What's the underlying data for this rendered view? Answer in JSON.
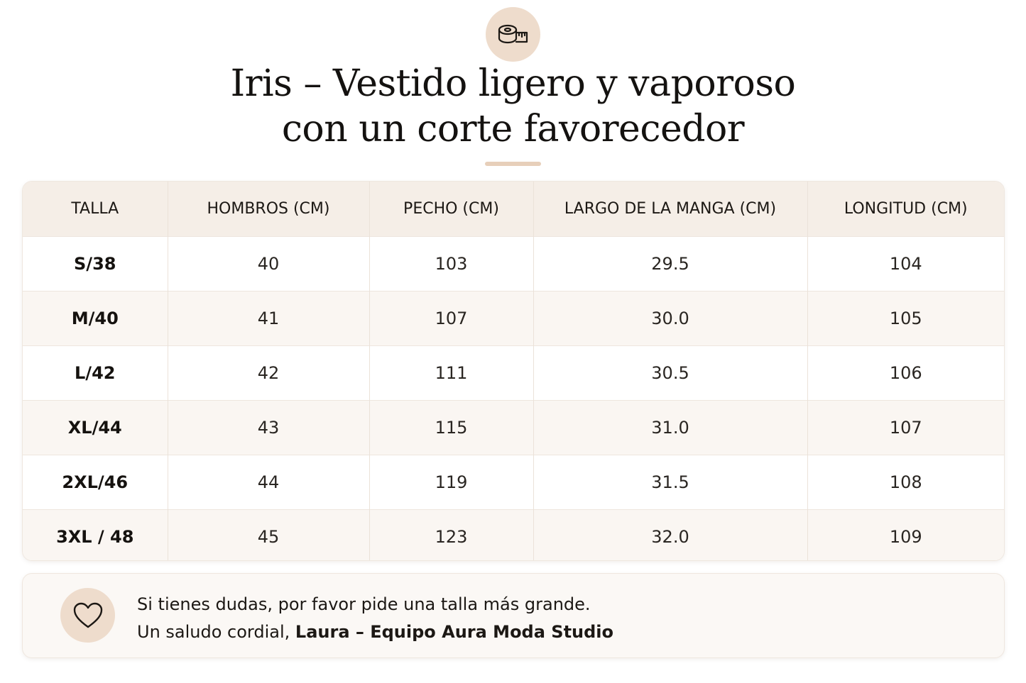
{
  "header": {
    "badge_icon": "tape-measure-icon",
    "title_line1": "Iris – Vestido ligero y vaporoso",
    "title_line2": "con un corte favorecedor"
  },
  "table": {
    "columns": [
      "TALLA",
      "HOMBROS (CM)",
      "PECHO (CM)",
      "LARGO DE LA MANGA (CM)",
      "LONGITUD (CM)"
    ],
    "rows": [
      [
        "S/38",
        "40",
        "103",
        "29.5",
        "104"
      ],
      [
        "M/40",
        "41",
        "107",
        "30.0",
        "105"
      ],
      [
        "L/42",
        "42",
        "111",
        "30.5",
        "106"
      ],
      [
        "XL/44",
        "43",
        "115",
        "31.0",
        "107"
      ],
      [
        "2XL/46",
        "44",
        "119",
        "31.5",
        "108"
      ],
      [
        "3XL / 48",
        "45",
        "123",
        "32.0",
        "109"
      ]
    ]
  },
  "note": {
    "icon": "heart-icon",
    "line1": "Si tienes dudas, por favor pide una talla más grande.",
    "line2_prefix": "Un saludo cordial, ",
    "line2_signature": "Laura – Equipo Aura Moda Studio"
  },
  "colors": {
    "accent": "#eedccc",
    "header_row": "#f5eee7",
    "accent_line": "#e7cfba"
  }
}
